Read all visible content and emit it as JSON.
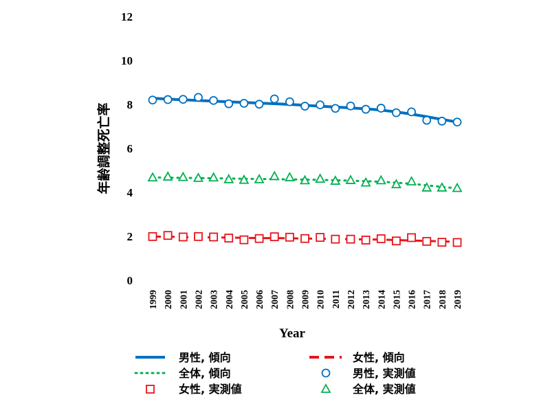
{
  "chart_data": {
    "type": "line",
    "title": "",
    "xlabel": "Year",
    "ylabel": "年齢調整死亡率",
    "ylim": [
      0,
      12
    ],
    "yticks": [
      0,
      2,
      4,
      6,
      8,
      10,
      12
    ],
    "grid": false,
    "legend_position": "bottom",
    "categories": [
      "1999",
      "2000",
      "2001",
      "2002",
      "2003",
      "2004",
      "2005",
      "2006",
      "2007",
      "2008",
      "2009",
      "2010",
      "2011",
      "2012",
      "2013",
      "2014",
      "2015",
      "2016",
      "2017",
      "2018",
      "2019"
    ],
    "series": [
      {
        "name": "男性, 傾向",
        "kind": "trend",
        "color": "#0070C0",
        "style": "solid",
        "values": [
          8.28,
          8.24,
          8.21,
          8.18,
          8.15,
          8.12,
          8.09,
          8.06,
          8.03,
          8.0,
          7.96,
          7.92,
          7.88,
          7.84,
          7.8,
          7.74,
          7.66,
          7.56,
          7.44,
          7.32,
          7.2
        ]
      },
      {
        "name": "女性, 傾向",
        "kind": "trend",
        "color": "#E8141B",
        "style": "dashed",
        "values": [
          1.99,
          1.98,
          1.97,
          1.96,
          1.95,
          1.94,
          1.93,
          1.92,
          1.92,
          1.91,
          1.9,
          1.89,
          1.88,
          1.87,
          1.86,
          1.85,
          1.83,
          1.81,
          1.79,
          1.77,
          1.75
        ]
      },
      {
        "name": "全体, 傾向",
        "kind": "trend",
        "color": "#00B050",
        "style": "dotted",
        "values": [
          4.68,
          4.67,
          4.66,
          4.65,
          4.64,
          4.63,
          4.62,
          4.61,
          4.6,
          4.59,
          4.58,
          4.57,
          4.55,
          4.53,
          4.51,
          4.48,
          4.44,
          4.39,
          4.32,
          4.25,
          4.18
        ]
      },
      {
        "name": "男性, 実測値",
        "kind": "observed",
        "marker": "circle",
        "color": "#0070C0",
        "values": [
          8.2,
          8.22,
          8.23,
          8.32,
          8.18,
          8.03,
          8.05,
          8.01,
          8.25,
          8.12,
          7.92,
          7.98,
          7.82,
          7.93,
          7.78,
          7.83,
          7.62,
          7.66,
          7.28,
          7.24,
          7.2
        ]
      },
      {
        "name": "女性, 実測値",
        "kind": "observed",
        "marker": "square",
        "color": "#E8141B",
        "values": [
          1.99,
          2.04,
          1.97,
          1.99,
          1.97,
          1.92,
          1.84,
          1.9,
          1.98,
          1.96,
          1.9,
          1.95,
          1.87,
          1.87,
          1.83,
          1.89,
          1.79,
          1.94,
          1.77,
          1.73,
          1.72
        ]
      },
      {
        "name": "全体, 実測値",
        "kind": "observed",
        "marker": "triangle",
        "color": "#00B050",
        "values": [
          4.68,
          4.72,
          4.7,
          4.66,
          4.68,
          4.6,
          4.57,
          4.6,
          4.74,
          4.69,
          4.55,
          4.62,
          4.53,
          4.56,
          4.45,
          4.55,
          4.37,
          4.5,
          4.22,
          4.22,
          4.2
        ]
      }
    ],
    "legend": [
      {
        "label": "男性, 傾向"
      },
      {
        "label": "女性, 傾向"
      },
      {
        "label": "全体, 傾向"
      },
      {
        "label": "男性, 実測値"
      },
      {
        "label": "女性, 実測値"
      },
      {
        "label": "全体, 実測値"
      }
    ]
  }
}
